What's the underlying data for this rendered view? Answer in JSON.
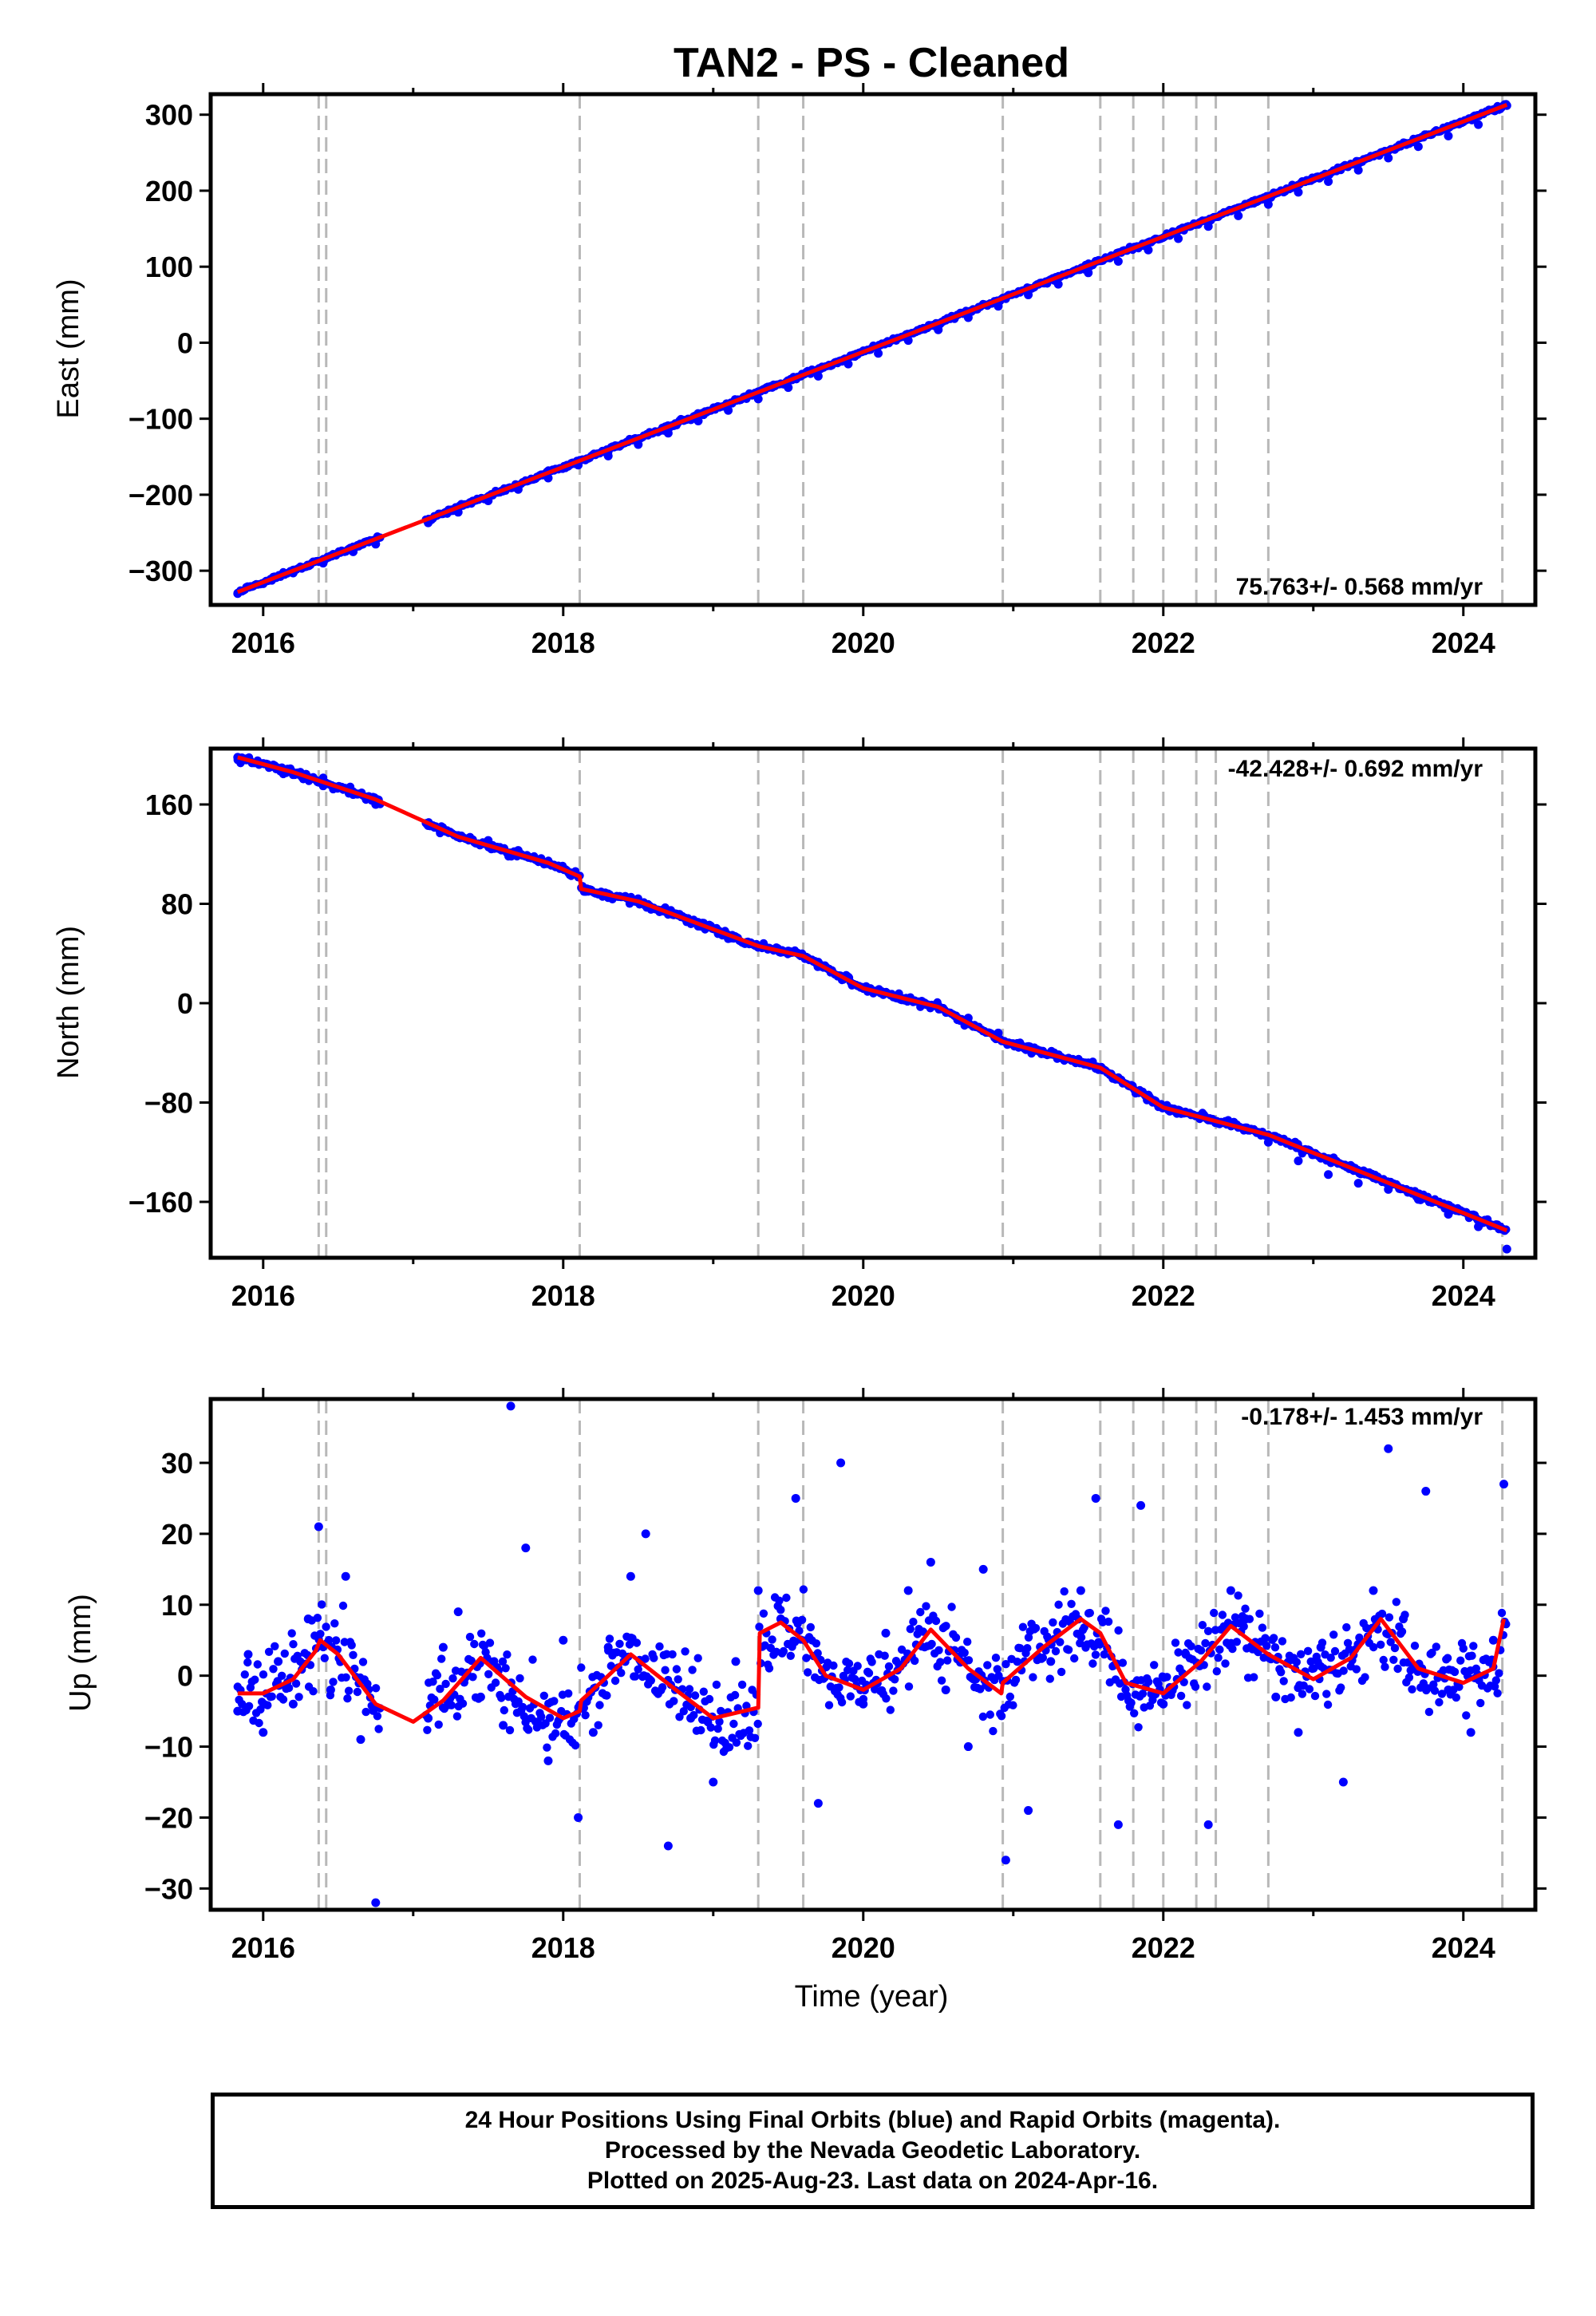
{
  "title": "TAN2  - PS - Cleaned",
  "colors": {
    "final_orbits": "#0000ff",
    "model_fit": "#ff0000",
    "event_lines": "#b8b8b8",
    "frame": "#000000"
  },
  "xlabel": "Time (year)",
  "event_years": [
    2016.37,
    2016.42,
    2018.11,
    2019.3,
    2019.6,
    2020.93,
    2021.58,
    2021.8,
    2022.0,
    2022.22,
    2022.35,
    2022.7,
    2024.26
  ],
  "footer": {
    "line1": "24 Hour Positions Using Final Orbits (blue) and Rapid Orbits (magenta).",
    "line2": "Processed by the Nevada Geodetic Laboratory.",
    "line3": "Plotted on 2025-Aug-23. Last data on 2024-Apr-16."
  },
  "chart_data": [
    {
      "type": "scatter",
      "panel": "east",
      "ylabel": "East (mm)",
      "xlim": [
        2015.65,
        2024.48
      ],
      "ylim": [
        -345,
        327
      ],
      "x_ticks": [
        2016,
        2018,
        2020,
        2022,
        2024
      ],
      "y_ticks": [
        -300,
        -200,
        -100,
        0,
        100,
        200,
        300
      ],
      "rate_text": "75.763+/- 0.568 mm/yr",
      "rate_position": "bottom-right",
      "series": [
        {
          "role": "observations",
          "x": [
            2015.83,
            2016.0,
            2016.2,
            2016.4,
            2016.6,
            2016.75,
            2017.1,
            2017.3,
            2017.5,
            2017.7,
            2017.9,
            2018.1,
            2018.3,
            2018.5,
            2018.7,
            2018.9,
            2019.1,
            2019.3,
            2019.5,
            2019.7,
            2019.9,
            2020.1,
            2020.3,
            2020.5,
            2020.7,
            2020.9,
            2021.1,
            2021.3,
            2021.5,
            2021.7,
            2021.9,
            2022.1,
            2022.3,
            2022.5,
            2022.7,
            2022.9,
            2023.1,
            2023.3,
            2023.5,
            2023.7,
            2023.9,
            2024.1,
            2024.29
          ],
          "y": [
            -330,
            -317,
            -303,
            -290,
            -275,
            -265,
            -237,
            -223,
            -208,
            -193,
            -178,
            -161,
            -149,
            -134,
            -119,
            -103,
            -89,
            -74,
            -59,
            -44,
            -28,
            -14,
            3,
            17,
            33,
            48,
            63,
            77,
            92,
            107,
            122,
            137,
            153,
            167,
            182,
            198,
            212,
            227,
            243,
            258,
            272,
            287,
            312
          ]
        },
        {
          "role": "model",
          "x": [
            2015.83,
            2024.29
          ],
          "y": [
            -328,
            313
          ]
        }
      ]
    },
    {
      "type": "scatter",
      "panel": "north",
      "ylabel": "North (mm)",
      "xlim": [
        2015.65,
        2024.48
      ],
      "ylim": [
        -205,
        205
      ],
      "x_ticks": [
        2016,
        2018,
        2020,
        2022,
        2024
      ],
      "y_ticks": [
        -160,
        -80,
        0,
        80,
        160
      ],
      "rate_text": "-42.428+/- 0.692 mm/yr",
      "rate_position": "top-right",
      "series": [
        {
          "role": "observations",
          "x": [
            2015.83,
            2016.0,
            2016.2,
            2016.4,
            2016.6,
            2016.75,
            2017.1,
            2017.3,
            2017.5,
            2017.7,
            2017.9,
            2018.05,
            2018.15,
            2018.3,
            2018.5,
            2018.7,
            2018.9,
            2019.1,
            2019.3,
            2019.5,
            2019.7,
            2019.9,
            2020.1,
            2020.3,
            2020.5,
            2020.7,
            2020.9,
            2021.1,
            2021.3,
            2021.5,
            2021.7,
            2021.9,
            2022.1,
            2022.3,
            2022.5,
            2022.7,
            2022.9,
            2023.1,
            2023.3,
            2023.5,
            2023.7,
            2023.9,
            2024.1,
            2024.29
          ],
          "y": [
            198,
            193,
            184,
            175,
            168,
            160,
            143,
            135,
            131,
            123,
            113,
            105,
            90,
            85,
            82,
            72,
            62,
            52,
            45,
            42,
            33,
            21,
            10,
            2,
            -2,
            -12,
            -24,
            -35,
            -42,
            -48,
            -60,
            -74,
            -86,
            -94,
            -100,
            -112,
            -127,
            -138,
            -145,
            -150,
            -158,
            -170,
            -180,
            -198
          ]
        },
        {
          "role": "model",
          "x": [
            2015.83,
            2016.2,
            2016.75,
            2017.3,
            2017.9,
            2018.11,
            2018.12,
            2018.5,
            2019.3,
            2019.6,
            2020.0,
            2020.5,
            2020.93,
            2021.58,
            2022.0,
            2022.7,
            2024.29
          ],
          "y": [
            198,
            186,
            164,
            134,
            113,
            102,
            92,
            82,
            46,
            38,
            12,
            -3,
            -31,
            -52,
            -84,
            -106,
            -183
          ]
        }
      ]
    },
    {
      "type": "scatter",
      "panel": "up",
      "ylabel": "Up (mm)",
      "xlim": [
        2015.65,
        2024.48
      ],
      "ylim": [
        -33,
        39
      ],
      "x_ticks": [
        2016,
        2018,
        2020,
        2022,
        2024
      ],
      "y_ticks": [
        -30,
        -20,
        -10,
        0,
        10,
        20,
        30
      ],
      "rate_text": "-0.178+/- 1.453 mm/yr",
      "rate_position": "top-right",
      "series": [
        {
          "role": "observations",
          "x": [
            2015.83,
            2015.9,
            2016.0,
            2016.1,
            2016.2,
            2016.3,
            2016.37,
            2016.45,
            2016.55,
            2016.65,
            2016.75,
            2017.1,
            2017.2,
            2017.3,
            2017.45,
            2017.6,
            2017.65,
            2017.75,
            2017.9,
            2018.0,
            2018.1,
            2018.2,
            2018.3,
            2018.45,
            2018.55,
            2018.7,
            2018.85,
            2019.0,
            2019.15,
            2019.3,
            2019.45,
            2019.55,
            2019.7,
            2019.85,
            2020.0,
            2020.15,
            2020.3,
            2020.45,
            2020.55,
            2020.7,
            2020.8,
            2020.95,
            2021.1,
            2021.25,
            2021.45,
            2021.55,
            2021.7,
            2021.85,
            2022.0,
            2022.15,
            2022.3,
            2022.45,
            2022.55,
            2022.75,
            2022.9,
            2023.05,
            2023.2,
            2023.4,
            2023.5,
            2023.6,
            2023.75,
            2023.9,
            2024.05,
            2024.2,
            2024.27
          ],
          "y": [
            -5,
            3,
            -8,
            2,
            -4,
            8,
            21,
            -2,
            14,
            -9,
            -32,
            -6,
            4,
            9,
            -3,
            -7,
            38,
            18,
            -12,
            5,
            -20,
            -8,
            4,
            14,
            20,
            -24,
            -6,
            -15,
            2,
            12,
            8,
            25,
            -18,
            30,
            -4,
            6,
            12,
            16,
            -2,
            -10,
            15,
            -26,
            -19,
            2,
            12,
            25,
            -21,
            24,
            -4,
            3,
            -21,
            12,
            8,
            -3,
            -8,
            4,
            -15,
            12,
            32,
            8,
            26,
            -2,
            -8,
            5,
            27
          ]
        },
        {
          "role": "model",
          "x": [
            2015.83,
            2016.0,
            2016.2,
            2016.35,
            2016.38,
            2016.5,
            2016.75,
            2017.0,
            2017.2,
            2017.45,
            2017.75,
            2018.0,
            2018.11,
            2018.12,
            2018.3,
            2018.45,
            2018.75,
            2019.0,
            2019.3,
            2019.31,
            2019.45,
            2019.6,
            2019.75,
            2020.0,
            2020.25,
            2020.45,
            2020.7,
            2020.92,
            2020.93,
            2021.2,
            2021.45,
            2021.58,
            2021.75,
            2022.0,
            2022.25,
            2022.45,
            2022.7,
            2023.0,
            2023.25,
            2023.45,
            2023.7,
            2024.0,
            2024.2,
            2024.27
          ],
          "y": [
            -2.5,
            -2.5,
            -0.5,
            3.5,
            5,
            3,
            -4,
            -6.5,
            -3.5,
            2.5,
            -3,
            -6,
            -5,
            -3.5,
            0,
            3,
            -2,
            -6,
            -4.5,
            6,
            7.5,
            5,
            0,
            -2,
            1,
            6.5,
            1,
            -2.5,
            -1,
            4,
            8,
            6,
            -1,
            -2.5,
            2,
            7,
            3,
            -0.5,
            2.5,
            8,
            1,
            -1,
            1,
            8
          ]
        }
      ]
    }
  ]
}
